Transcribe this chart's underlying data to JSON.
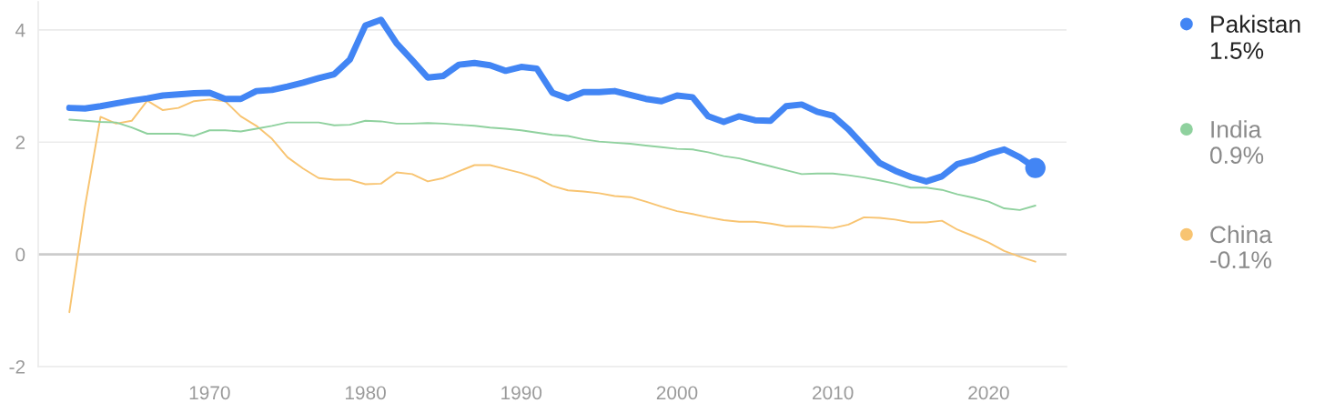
{
  "chart_data": {
    "type": "line",
    "x": [
      1961,
      1962,
      1963,
      1964,
      1965,
      1966,
      1967,
      1968,
      1969,
      1970,
      1971,
      1972,
      1973,
      1974,
      1975,
      1976,
      1977,
      1978,
      1979,
      1980,
      1981,
      1982,
      1983,
      1984,
      1985,
      1986,
      1987,
      1988,
      1989,
      1990,
      1991,
      1992,
      1993,
      1994,
      1995,
      1996,
      1997,
      1998,
      1999,
      2000,
      2001,
      2002,
      2003,
      2004,
      2005,
      2006,
      2007,
      2008,
      2009,
      2010,
      2011,
      2012,
      2013,
      2014,
      2015,
      2016,
      2017,
      2018,
      2019,
      2020,
      2021,
      2022,
      2023
    ],
    "series": [
      {
        "name": "Pakistan",
        "color": "#4285f4",
        "values": [
          2.61,
          2.6,
          2.64,
          2.69,
          2.74,
          2.78,
          2.83,
          2.85,
          2.87,
          2.88,
          2.77,
          2.77,
          2.91,
          2.93,
          2.99,
          3.06,
          3.14,
          3.21,
          3.47,
          4.08,
          4.18,
          3.76,
          3.46,
          3.15,
          3.18,
          3.38,
          3.41,
          3.37,
          3.27,
          3.34,
          3.31,
          2.88,
          2.78,
          2.89,
          2.89,
          2.91,
          2.84,
          2.77,
          2.73,
          2.83,
          2.8,
          2.46,
          2.36,
          2.46,
          2.39,
          2.38,
          2.64,
          2.67,
          2.54,
          2.47,
          2.23,
          1.93,
          1.63,
          1.49,
          1.38,
          1.3,
          1.39,
          1.61,
          1.68,
          1.79,
          1.87,
          1.73,
          1.54
        ]
      },
      {
        "name": "India",
        "color": "#8fd19e",
        "values": [
          2.4,
          2.38,
          2.36,
          2.35,
          2.26,
          2.15,
          2.15,
          2.15,
          2.11,
          2.21,
          2.21,
          2.19,
          2.24,
          2.29,
          2.35,
          2.35,
          2.35,
          2.3,
          2.31,
          2.38,
          2.37,
          2.33,
          2.33,
          2.34,
          2.33,
          2.31,
          2.29,
          2.26,
          2.24,
          2.21,
          2.17,
          2.13,
          2.11,
          2.05,
          2.01,
          1.99,
          1.97,
          1.94,
          1.91,
          1.88,
          1.87,
          1.82,
          1.75,
          1.71,
          1.64,
          1.57,
          1.5,
          1.43,
          1.44,
          1.44,
          1.41,
          1.37,
          1.32,
          1.26,
          1.19,
          1.19,
          1.15,
          1.07,
          1.01,
          0.94,
          0.82,
          0.79,
          0.87
        ]
      },
      {
        "name": "China",
        "color": "#f8c471",
        "values": [
          -1.03,
          0.85,
          2.45,
          2.33,
          2.38,
          2.74,
          2.57,
          2.61,
          2.73,
          2.76,
          2.73,
          2.46,
          2.29,
          2.06,
          1.73,
          1.53,
          1.36,
          1.33,
          1.33,
          1.25,
          1.26,
          1.46,
          1.43,
          1.3,
          1.36,
          1.48,
          1.59,
          1.59,
          1.52,
          1.45,
          1.36,
          1.22,
          1.14,
          1.12,
          1.09,
          1.04,
          1.02,
          0.94,
          0.85,
          0.77,
          0.72,
          0.66,
          0.61,
          0.58,
          0.58,
          0.55,
          0.5,
          0.5,
          0.49,
          0.47,
          0.53,
          0.66,
          0.65,
          0.62,
          0.57,
          0.57,
          0.6,
          0.44,
          0.33,
          0.21,
          0.06,
          -0.04,
          -0.13
        ]
      },
      {
        "type": "scatter",
        "x": [
          2023
        ],
        "color": "#4285f4",
        "marker": "circle",
        "values": [
          1.54
        ]
      }
    ],
    "xlim": [
      1959,
      2025
    ],
    "ylim": [
      -2,
      4.5
    ],
    "xticks": [
      1970,
      1980,
      1990,
      2000,
      2010,
      2020
    ],
    "yticks": [
      -2,
      0,
      2,
      4
    ],
    "grid": "y",
    "legend": "right",
    "ref_lines": [
      {
        "axis": "y",
        "value": 0,
        "color": "#cccccc"
      }
    ],
    "annotations": [
      "1.5%",
      "0.9%",
      "-0.1%"
    ]
  }
}
